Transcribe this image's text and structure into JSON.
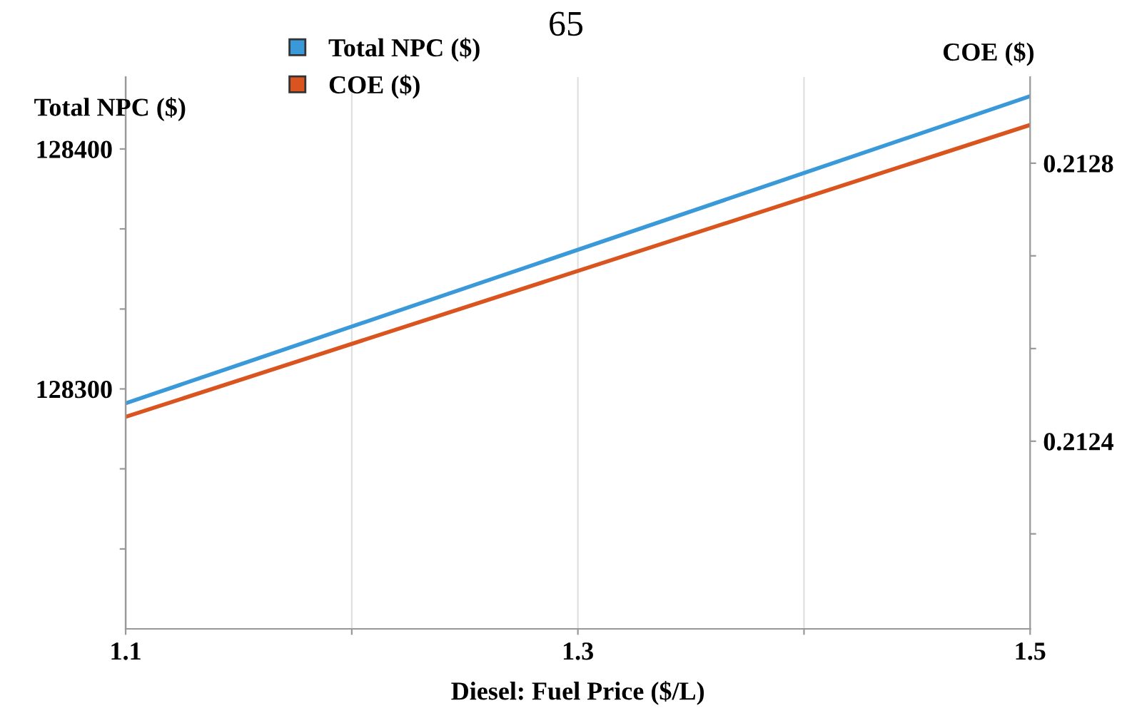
{
  "chart_data": {
    "type": "line",
    "title": "65",
    "xlabel": "Diesel: Fuel Price ($/L)",
    "ylabel": "Total NPC ($)",
    "y2label": "COE ($)",
    "x": [
      1.1,
      1.5
    ],
    "series": [
      {
        "name": "Total NPC ($)",
        "color": "#3a9ad9",
        "values": [
          128294,
          128422
        ]
      },
      {
        "name": "COE ($)",
        "color": "#d9541e",
        "values": [
          0.212435,
          0.212855
        ],
        "axis": "y2"
      }
    ],
    "xlim": [
      1.1,
      1.5
    ],
    "xticks": [
      1.1,
      {
        "value": 1.2,
        "label": null
      },
      1.3,
      {
        "value": 1.4,
        "label": null
      },
      1.5
    ],
    "ylim": [
      128200,
      128430
    ],
    "yticks": [
      {
        "value": 128233.3,
        "label": null
      },
      {
        "value": 128266.7,
        "label": null
      },
      128300,
      {
        "value": 128333.3,
        "label": null
      },
      {
        "value": 128366.7,
        "label": null
      },
      128400
    ],
    "y2lim": [
      0.21213,
      0.212924
    ],
    "y2ticks": [
      {
        "value": 0.2122667,
        "label": null
      },
      0.2124,
      {
        "value": 0.2125333,
        "label": null
      },
      {
        "value": 0.2126667,
        "label": null
      },
      0.2128
    ],
    "grid": "x",
    "legend": "top left",
    "marker": "none",
    "line_style": "solid"
  }
}
